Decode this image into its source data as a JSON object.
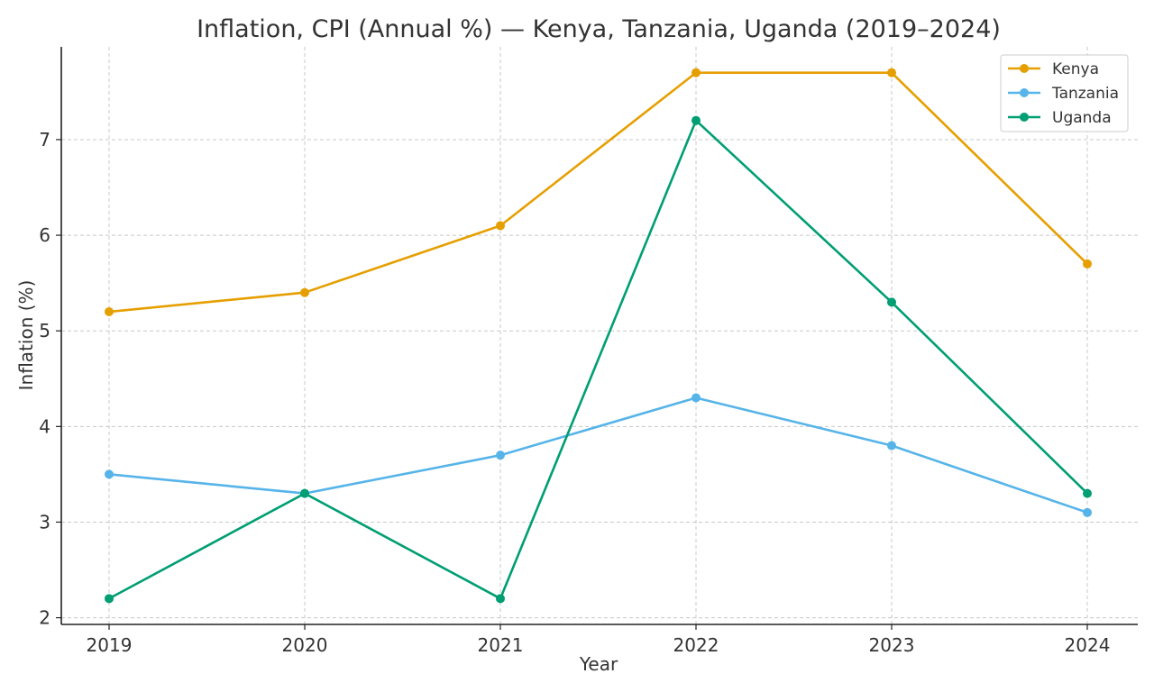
{
  "chart_data": {
    "type": "line",
    "title": "Inflation, CPI (Annual %) — Kenya, Tanzania, Uganda (2019–2024)",
    "xlabel": "Year",
    "ylabel": "Inflation (%)",
    "x": [
      "2019",
      "2020",
      "2021",
      "2022",
      "2023",
      "2024"
    ],
    "yticks": [
      2,
      3,
      4,
      5,
      6,
      7
    ],
    "ylim": [
      1.93,
      7.97
    ],
    "grid": true,
    "legend_position": "top-right",
    "series": [
      {
        "name": "Kenya",
        "color": "#E69F00",
        "values": [
          5.2,
          5.4,
          6.1,
          7.7,
          7.7,
          5.7
        ]
      },
      {
        "name": "Tanzania",
        "color": "#56B4E9",
        "values": [
          3.5,
          3.3,
          3.7,
          4.3,
          3.8,
          3.1
        ]
      },
      {
        "name": "Uganda",
        "color": "#009E73",
        "values": [
          2.2,
          3.3,
          2.2,
          7.2,
          5.3,
          3.3
        ]
      }
    ]
  }
}
